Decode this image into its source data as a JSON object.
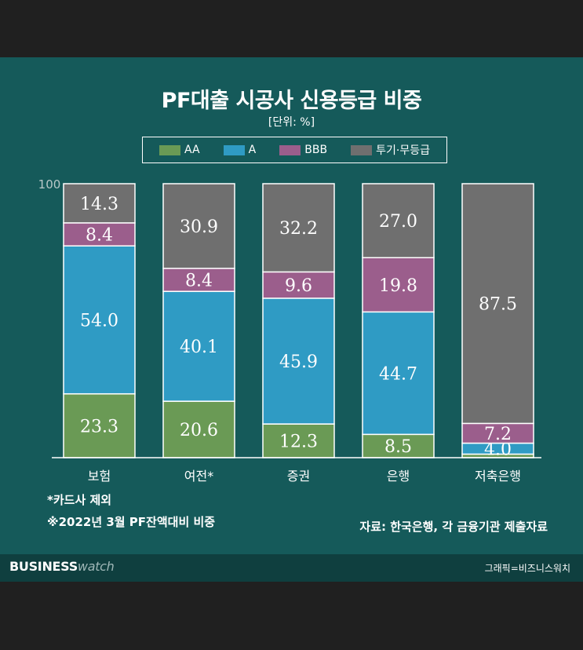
{
  "title": "PF대출 시공사 신용등급 비중",
  "unit": "[단위: %]",
  "colors": {
    "AA": "#6a9a55",
    "A": "#2f9bc4",
    "BBB": "#9b5e8c",
    "junk": "#6f6f6f"
  },
  "chart_data": {
    "type": "bar",
    "stacked": true,
    "categories": [
      "보험",
      "여전*",
      "증권",
      "은행",
      "저축은행"
    ],
    "ylim": [
      0,
      100
    ],
    "yticks": [
      "100"
    ],
    "legend_position": "top",
    "series": [
      {
        "name": "AA",
        "values": [
          23.3,
          20.6,
          12.3,
          8.5,
          1.3
        ],
        "labels": [
          "23.3",
          "20.6",
          "12.3",
          "8.5",
          ""
        ]
      },
      {
        "name": "A",
        "values": [
          54.0,
          40.1,
          45.9,
          44.7,
          4.0
        ],
        "labels": [
          "54.0",
          "40.1",
          "45.9",
          "44.7",
          "4.0"
        ]
      },
      {
        "name": "BBB",
        "values": [
          8.4,
          8.4,
          9.6,
          19.8,
          7.2
        ],
        "labels": [
          "8.4",
          "8.4",
          "9.6",
          "19.8",
          "7.2"
        ]
      },
      {
        "name": "투기·무등급",
        "values": [
          14.3,
          30.9,
          32.2,
          27.0,
          87.5
        ],
        "labels": [
          "14.3",
          "30.9",
          "32.2",
          "27.0",
          "87.5"
        ]
      }
    ]
  },
  "footnotes": [
    "*카드사 제외",
    "※2022년 3월 PF잔액대비 비중"
  ],
  "source": "자료: 한국은행, 각 금융기관 제출자료",
  "brand": {
    "part1": "BUSINESS",
    "part2": "watch"
  },
  "credit": "그래픽=비즈니스워치"
}
